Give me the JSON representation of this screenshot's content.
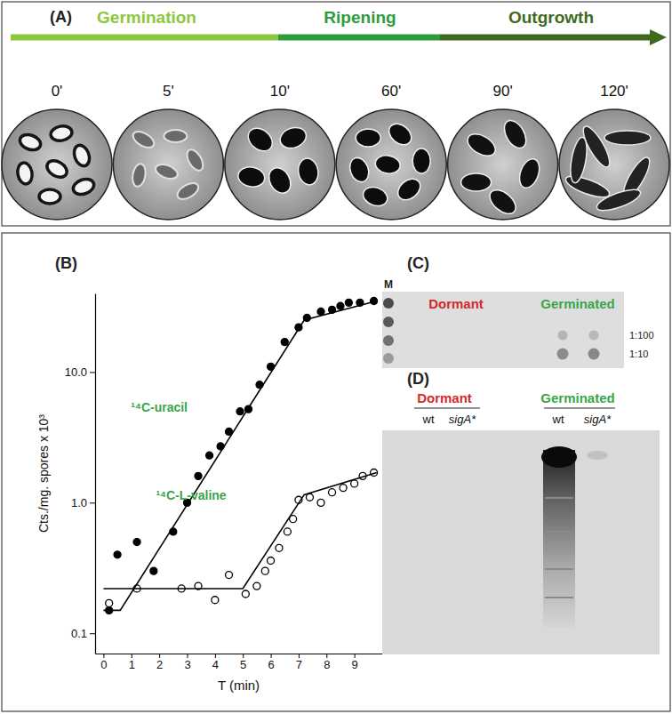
{
  "panel_a": {
    "label": "(A)",
    "phases": [
      {
        "name": "Germination",
        "color": "#8dc63f"
      },
      {
        "name": "Ripening",
        "color": "#2e9b3c"
      },
      {
        "name": "Outgrowth",
        "color": "#3f6a1e"
      }
    ],
    "times": [
      "0'",
      "5'",
      "10'",
      "60'",
      "90'",
      "120'"
    ]
  },
  "chart_data": {
    "type": "scatter",
    "title": "(B)",
    "x_label": "T (min)",
    "y_label": "Cts./mg. spores x 10³",
    "log": "y",
    "xlim": [
      -0.3,
      10
    ],
    "ylim": [
      0.07,
      40
    ],
    "xticks": [
      0,
      1,
      2,
      3,
      4,
      5,
      6,
      7,
      8,
      9
    ],
    "yticks": [
      0.1,
      {
        "value": 1,
        "label": "1.0"
      },
      {
        "value": 10,
        "label": "10.0"
      }
    ],
    "series": [
      {
        "name": "¹⁴C-uracil",
        "type": "scatter",
        "marker": "filled",
        "color": "#000000",
        "x": [
          0.2,
          0.5,
          1.2,
          1.8,
          2.5,
          3.0,
          3.4,
          3.8,
          4.2,
          4.5,
          4.9,
          5.2,
          5.6,
          6.0,
          6.5,
          7.0,
          7.3,
          7.8,
          8.2,
          8.5,
          8.8,
          9.2,
          9.7
        ],
        "values": [
          0.15,
          0.4,
          0.5,
          0.3,
          0.6,
          1.0,
          1.6,
          2.3,
          2.7,
          3.5,
          5.0,
          5.2,
          8,
          11,
          17,
          22,
          26,
          29,
          30,
          32,
          34,
          34,
          35
        ]
      },
      {
        "name": "¹⁴C-L-valine",
        "type": "scatter",
        "marker": "open",
        "color": "#000000",
        "x": [
          0.2,
          1.2,
          2.8,
          3.4,
          4.0,
          4.5,
          5.1,
          5.5,
          5.8,
          6.0,
          6.3,
          6.6,
          6.8,
          7.0,
          7.4,
          7.8,
          8.2,
          8.6,
          9.0,
          9.3,
          9.7
        ],
        "values": [
          0.17,
          0.22,
          0.22,
          0.23,
          0.18,
          0.28,
          0.2,
          0.23,
          0.3,
          0.36,
          0.45,
          0.6,
          0.75,
          1.05,
          1.1,
          1.0,
          1.2,
          1.3,
          1.4,
          1.6,
          1.7
        ]
      },
      {
        "type": "line",
        "line_style": "solid",
        "color": "#000000",
        "x": [
          0,
          0.6,
          7.2,
          9.8
        ],
        "values": [
          0.15,
          0.15,
          25,
          35
        ]
      },
      {
        "type": "line",
        "line_style": "solid",
        "color": "#000000",
        "x": [
          0,
          5.0,
          7.2,
          9.8
        ],
        "values": [
          0.22,
          0.22,
          1.15,
          1.7
        ]
      }
    ]
  },
  "panel_c": {
    "label": "(C)",
    "marker": "M",
    "samples": [
      {
        "name": "Dormant",
        "color": "#d42a2a"
      },
      {
        "name": "Germinated",
        "color": "#3aa54a"
      }
    ],
    "dilutions": [
      "1:100",
      "1:10"
    ]
  },
  "panel_d": {
    "label": "(D)",
    "groups": [
      {
        "name": "Dormant",
        "color": "#d42a2a",
        "lanes": [
          "wt",
          "sigA*"
        ]
      },
      {
        "name": "Germinated",
        "color": "#3aa54a",
        "lanes": [
          "wt",
          "sigA*"
        ]
      }
    ]
  }
}
